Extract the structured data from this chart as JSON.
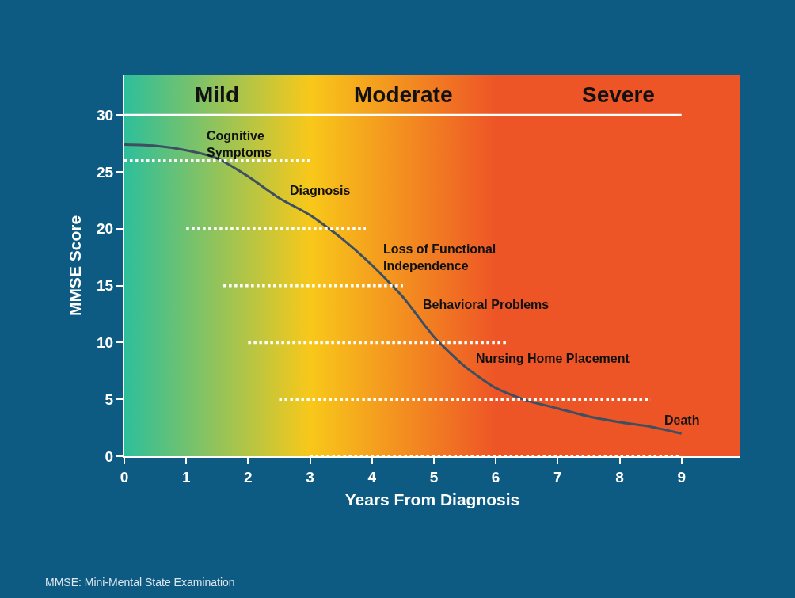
{
  "chart_data": {
    "type": "line",
    "xlabel": "Years From Diagnosis",
    "ylabel": "MMSE Score",
    "xlim": [
      0,
      9.95
    ],
    "ylim": [
      0,
      33.5
    ],
    "xticks": [
      0,
      1,
      2,
      3,
      4,
      5,
      6,
      7,
      8,
      9
    ],
    "yticks": [
      0,
      5,
      10,
      15,
      20,
      25,
      30
    ],
    "marker": "none",
    "series": [
      {
        "color": "#3d4f60",
        "line_style": "solid",
        "x": [
          0,
          0.5,
          1,
          1.5,
          2,
          2.5,
          3,
          3.5,
          4,
          4.5,
          5,
          5.5,
          6,
          6.5,
          7,
          7.5,
          8,
          8.5,
          9
        ],
        "values": [
          27.4,
          27.3,
          26.9,
          26.2,
          24.6,
          22.7,
          21.2,
          19.2,
          16.8,
          14,
          10.5,
          7.9,
          6,
          4.9,
          4.2,
          3.5,
          3,
          2.6,
          2
        ]
      },
      {
        "color": "#ffffff",
        "line_style": "solid",
        "x": [
          0,
          9
        ],
        "values": [
          30,
          30
        ]
      },
      {
        "color": "#ffffff",
        "line_style": "dotted",
        "x": [
          0,
          3
        ],
        "values": [
          26,
          26
        ]
      },
      {
        "color": "#ffffff",
        "line_style": "dotted",
        "x": [
          1,
          3.9
        ],
        "values": [
          20,
          20
        ]
      },
      {
        "color": "#ffffff",
        "line_style": "dotted",
        "x": [
          1.6,
          4.5
        ],
        "values": [
          15,
          15
        ]
      },
      {
        "color": "#ffffff",
        "line_style": "dotted",
        "x": [
          2,
          6.2
        ],
        "values": [
          10,
          10
        ]
      },
      {
        "color": "#ffffff",
        "line_style": "dotted",
        "x": [
          2.5,
          8.5
        ],
        "values": [
          5,
          5
        ]
      },
      {
        "color": "#ffffff",
        "line_style": "dotted",
        "x": [
          3,
          9
        ],
        "values": [
          0,
          0
        ]
      }
    ],
    "bands": [
      {
        "axis": "x",
        "from": 0,
        "to": 3,
        "label": "Mild",
        "color": "#2dbf9b"
      },
      {
        "axis": "x",
        "from": 3,
        "to": 6,
        "label": "Moderate",
        "color": "#f8c81a"
      },
      {
        "axis": "x",
        "from": 6,
        "to": 9.95,
        "label": "Severe",
        "color": "#ee5526"
      }
    ],
    "annotations": [
      {
        "text": "Cognitive\nSymptoms",
        "x": 1.3,
        "y": 26
      },
      {
        "text": "Diagnosis",
        "x": 2.5,
        "y": 22.7
      },
      {
        "text": "Loss of Functional\nIndependence",
        "x": 4,
        "y": 16.8
      },
      {
        "text": "Behavioral Problems",
        "x": 4.8,
        "y": 12.6
      },
      {
        "text": "Nursing Home Placement",
        "x": 5.5,
        "y": 7.9
      },
      {
        "text": "Death",
        "x": 9,
        "y": 2
      },
      "MMSE: Mini-Mental State Examination"
    ]
  }
}
